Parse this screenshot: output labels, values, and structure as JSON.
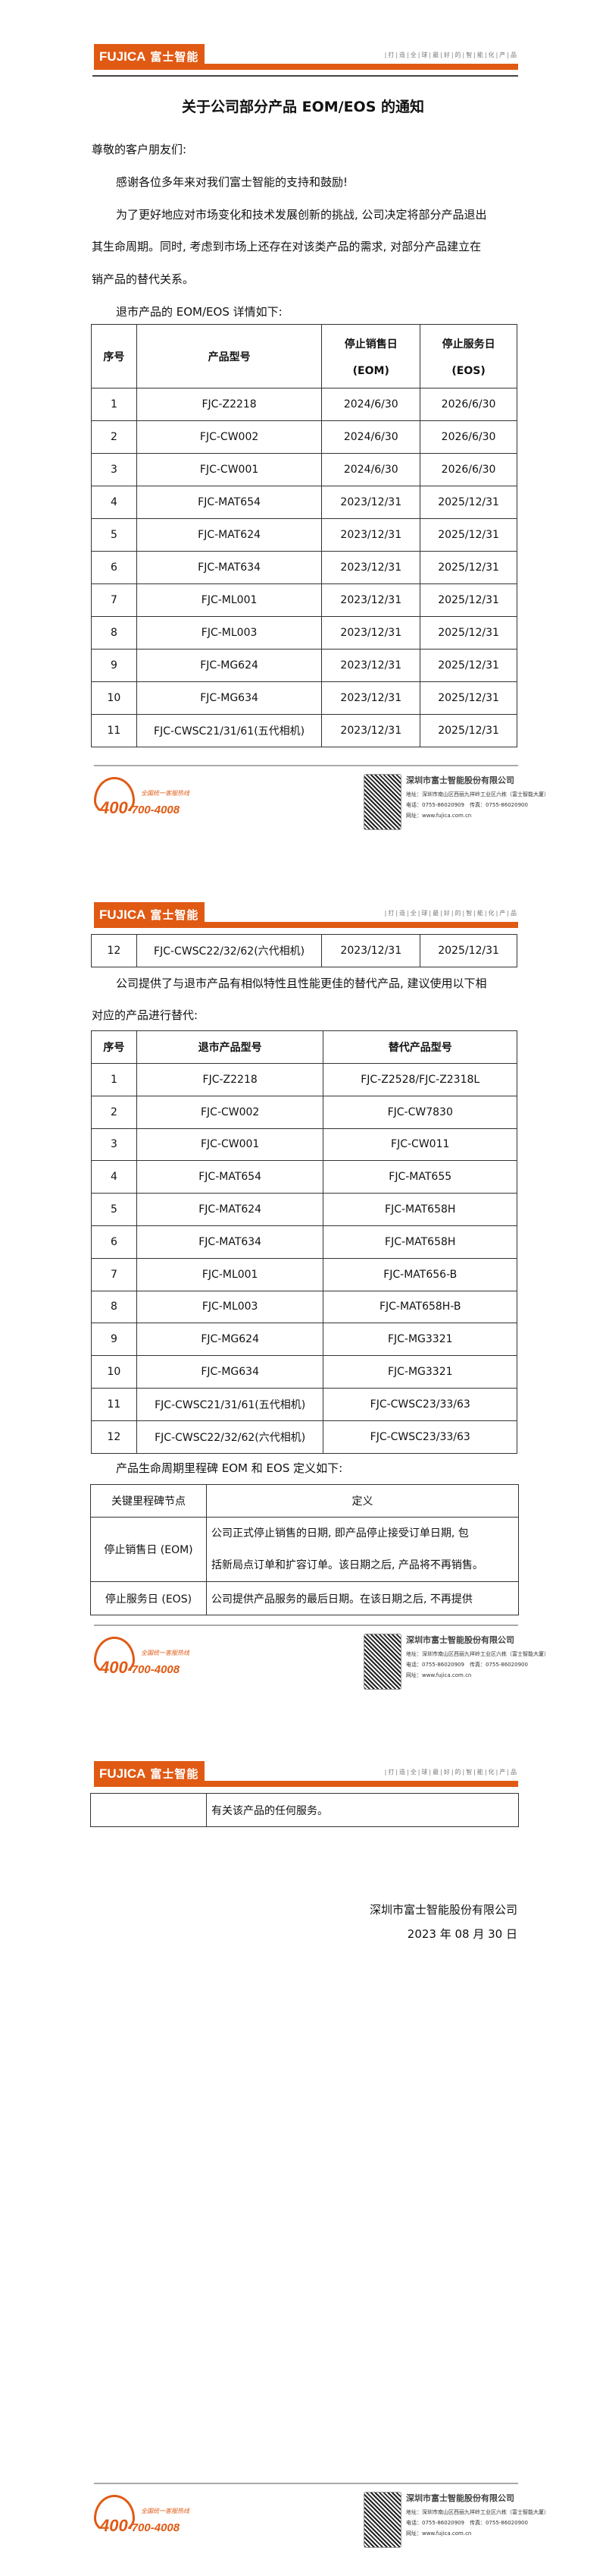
{
  "header": {
    "logo_en": "FUJICA",
    "logo_cn": "富士智能",
    "slogan": "|打|造|全|球|最|好|的|智|能|化|产|品",
    "accent": "#e05a14"
  },
  "title": "关于公司部分产品 EOM/EOS 的通知",
  "greeting": "尊敬的客户朋友们:",
  "para_thanks": "感谢各位多年来对我们富士智能的支持和鼓励!",
  "para_intro_l1": "为了更好地应对市场变化和技术发展创新的挑战, 公司决定将部分产品退出",
  "para_intro_l2": "其生命周期。同时, 考虑到市场上还存在对该类产品的需求, 对部分产品建立在",
  "para_intro_l3": "销产品的替代关系。",
  "eom_intro": "退市产品的 EOM/EOS 详情如下:",
  "eom_table": {
    "headers": [
      "序号",
      "产品型号",
      "停止销售日",
      "(EOM)",
      "停止服务日",
      "(EOS)"
    ],
    "rows": [
      [
        "1",
        "FJC-Z2218",
        "2024/6/30",
        "2026/6/30"
      ],
      [
        "2",
        "FJC-CW002",
        "2024/6/30",
        "2026/6/30"
      ],
      [
        "3",
        "FJC-CW001",
        "2024/6/30",
        "2026/6/30"
      ],
      [
        "4",
        "FJC-MAT654",
        "2023/12/31",
        "2025/12/31"
      ],
      [
        "5",
        "FJC-MAT624",
        "2023/12/31",
        "2025/12/31"
      ],
      [
        "6",
        "FJC-MAT634",
        "2023/12/31",
        "2025/12/31"
      ],
      [
        "7",
        "FJC-ML001",
        "2023/12/31",
        "2025/12/31"
      ],
      [
        "8",
        "FJC-ML003",
        "2023/12/31",
        "2025/12/31"
      ],
      [
        "9",
        "FJC-MG624",
        "2023/12/31",
        "2025/12/31"
      ],
      [
        "10",
        "FJC-MG634",
        "2023/12/31",
        "2025/12/31"
      ],
      [
        "11",
        "FJC-CWSC21/31/61(五代相机)",
        "2023/12/31",
        "2025/12/31"
      ],
      [
        "12",
        "FJC-CWSC22/32/62(六代相机)",
        "2023/12/31",
        "2025/12/31"
      ]
    ]
  },
  "replace_intro_l1": "公司提供了与退市产品有相似特性且性能更佳的替代产品, 建议使用以下相",
  "replace_intro_l2": "对应的产品进行替代:",
  "replace_table": {
    "headers": [
      "序号",
      "退市产品型号",
      "替代产品型号"
    ],
    "rows": [
      [
        "1",
        "FJC-Z2218",
        "FJC-Z2528/FJC-Z2318L"
      ],
      [
        "2",
        "FJC-CW002",
        "FJC-CW7830"
      ],
      [
        "3",
        "FJC-CW001",
        "FJC-CW011"
      ],
      [
        "4",
        "FJC-MAT654",
        "FJC-MAT655"
      ],
      [
        "5",
        "FJC-MAT624",
        "FJC-MAT658H"
      ],
      [
        "6",
        "FJC-MAT634",
        "FJC-MAT658H"
      ],
      [
        "7",
        "FJC-ML001",
        "FJC-MAT656-B"
      ],
      [
        "8",
        "FJC-ML003",
        "FJC-MAT658H-B"
      ],
      [
        "9",
        "FJC-MG624",
        "FJC-MG3321"
      ],
      [
        "10",
        "FJC-MG634",
        "FJC-MG3321"
      ],
      [
        "11",
        "FJC-CWSC21/31/61(五代相机)",
        "FJC-CWSC23/33/63"
      ],
      [
        "12",
        "FJC-CWSC22/32/62(六代相机)",
        "FJC-CWSC23/33/63"
      ]
    ]
  },
  "def_intro": "产品生命周期里程碑 EOM 和 EOS 定义如下:",
  "def_table": {
    "headers": [
      "关键里程碑节点",
      "定义"
    ],
    "rows": [
      {
        "node": "停止销售日 (EOM)",
        "def_l1": "公司正式停止销售的日期, 即产品停止接受订单日期, 包",
        "def_l2": "括新局点订单和扩容订单。该日期之后, 产品将不再销售。"
      },
      {
        "node": "停止服务日 (EOS)",
        "def_l1": "公司提供产品服务的最后日期。在该日期之后, 不再提供",
        "def_l2": "有关该产品的任何服务。"
      }
    ]
  },
  "signature": {
    "company": "深圳市富士智能股份有限公司",
    "date": "2023 年 08 月 30 日"
  },
  "footer": {
    "hotline_tag": "全国统一客服热线",
    "hotline_a": "400",
    "hotline_b": "-700-4008",
    "company": "深圳市富士智能股份有限公司",
    "address": "地址：深圳市南山区西丽九祥岭工业区六栋（富士智能大厦）",
    "phone": "电话：0755-86020909　传真：0755-86020900",
    "web": "网址：www.fujica.com.cn"
  }
}
